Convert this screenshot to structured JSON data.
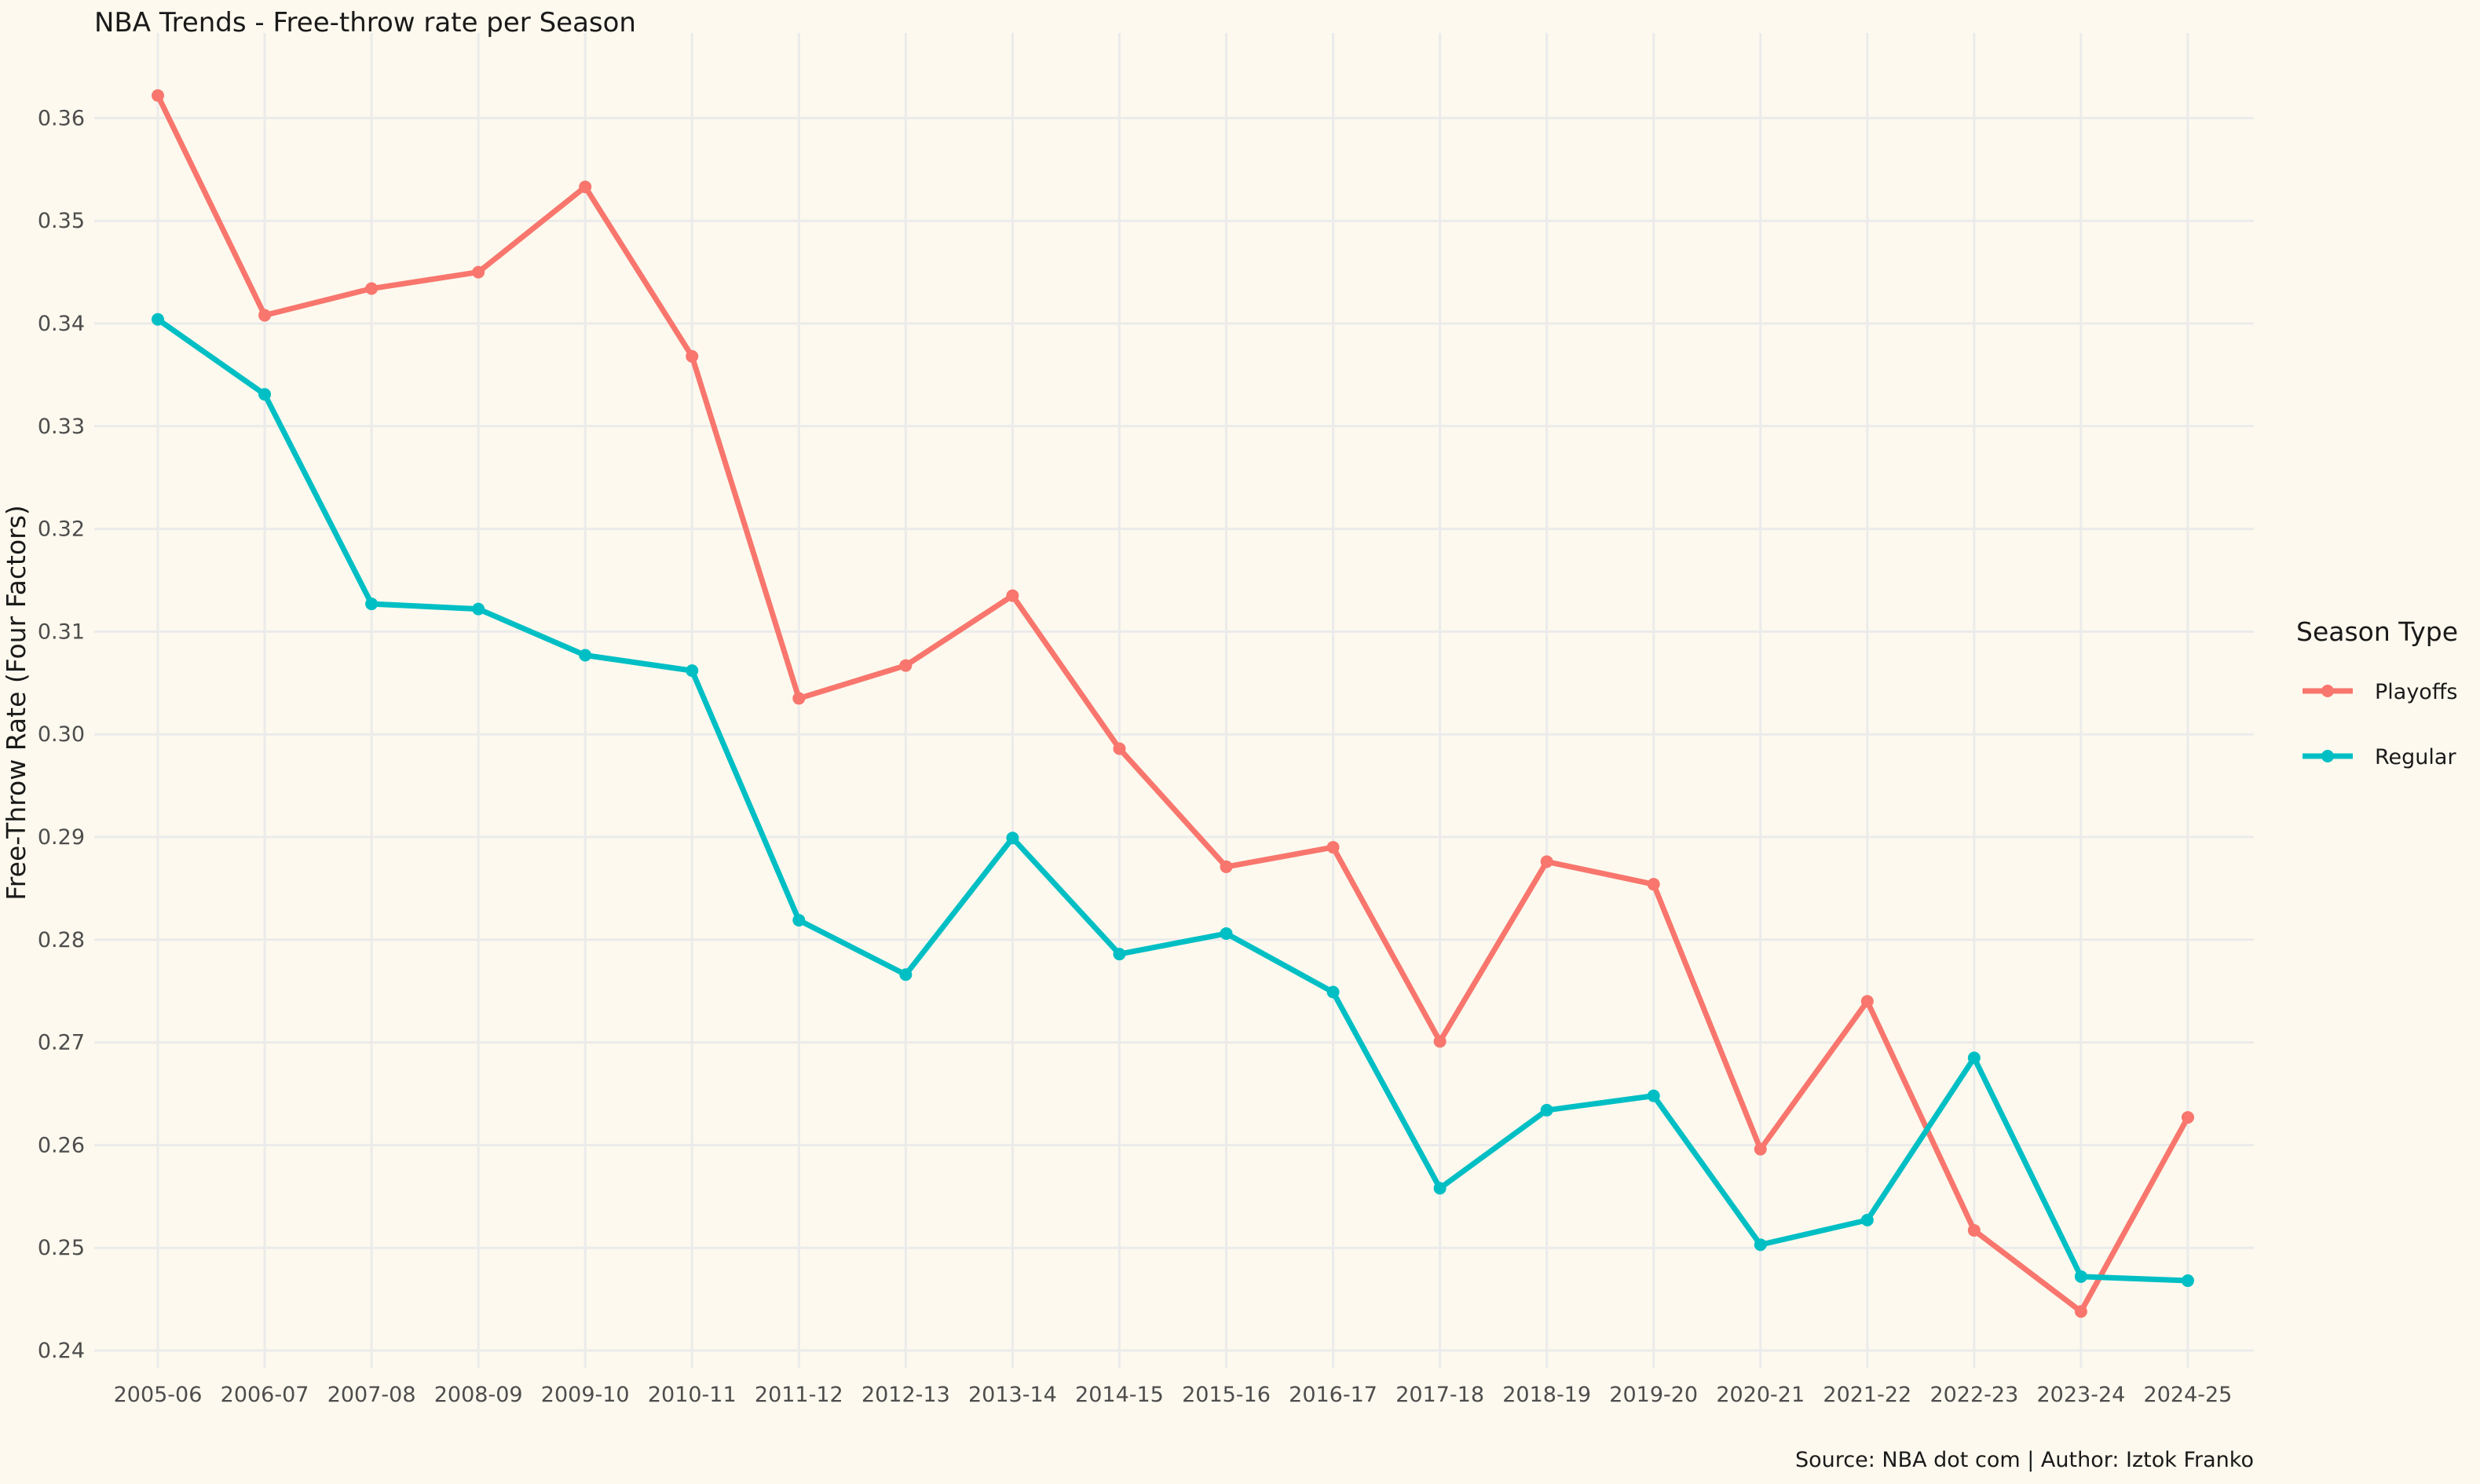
{
  "chart_data": {
    "type": "line",
    "title": "NBA Trends - Free-throw rate per Season",
    "xlabel": "",
    "ylabel": "Free-Throw Rate (Four Factors)",
    "caption": "Source: NBA dot com | Author: Iztok Franko",
    "x": [
      "2005-06",
      "2006-07",
      "2007-08",
      "2008-09",
      "2009-10",
      "2010-11",
      "2011-12",
      "2012-13",
      "2013-14",
      "2014-15",
      "2015-16",
      "2016-17",
      "2017-18",
      "2018-19",
      "2019-20",
      "2020-21",
      "2021-22",
      "2022-23",
      "2023-24",
      "2024-25"
    ],
    "ylim": [
      0.24,
      0.36
    ],
    "yticks": [
      "0.24",
      "0.25",
      "0.26",
      "0.27",
      "0.28",
      "0.29",
      "0.30",
      "0.31",
      "0.32",
      "0.33",
      "0.34",
      "0.35",
      "0.36"
    ],
    "grid": true,
    "legend": {
      "title": "Season Type",
      "position": "right"
    },
    "series": [
      {
        "name": "Playoffs",
        "color": "#f8766d",
        "values": [
          0.3622,
          0.3408,
          0.3434,
          0.345,
          0.3533,
          0.3368,
          0.3035,
          0.3067,
          0.3135,
          0.2986,
          0.2871,
          0.289,
          0.2701,
          0.2876,
          0.2854,
          0.2596,
          0.274,
          0.2517,
          0.2438,
          0.2627
        ]
      },
      {
        "name": "Regular",
        "color": "#00bfc4",
        "values": [
          0.3404,
          0.3331,
          0.3127,
          0.3122,
          0.3077,
          0.3062,
          0.2819,
          0.2766,
          0.2899,
          0.2786,
          0.2806,
          0.2749,
          0.2558,
          0.2634,
          0.2648,
          0.2503,
          0.2527,
          0.2685,
          0.2472,
          0.2468
        ]
      }
    ]
  }
}
